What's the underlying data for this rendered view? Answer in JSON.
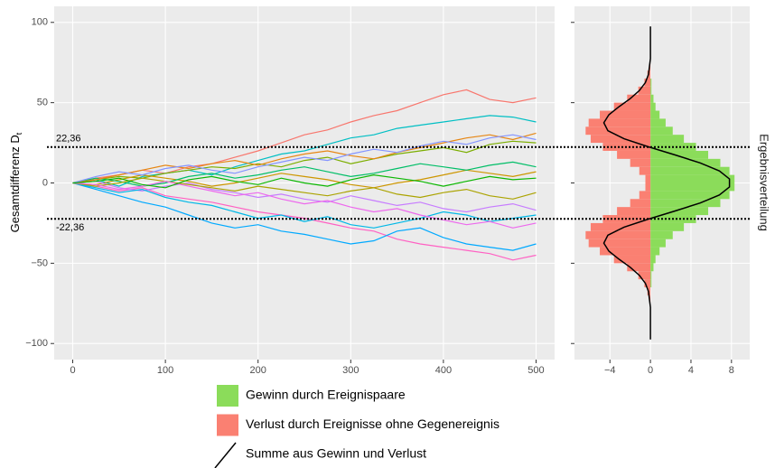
{
  "chart_data": [
    {
      "type": "line",
      "y_label": "Gesamtdifferenz D",
      "y_label_subscript": "t",
      "x": [
        0,
        25,
        50,
        75,
        100,
        125,
        150,
        175,
        200,
        225,
        250,
        275,
        300,
        325,
        350,
        375,
        400,
        425,
        450,
        475,
        500
      ],
      "xlim": [
        -20,
        520
      ],
      "xticks": [
        0,
        100,
        200,
        300,
        400,
        500
      ],
      "ylim": [
        -110,
        110
      ],
      "yticks": [
        {
          "value": -100,
          "label": "−100"
        },
        {
          "value": -50,
          "label": "−50"
        },
        0,
        50,
        100
      ],
      "grid": true,
      "hlines": [
        {
          "value": 22.36,
          "label": "22,36"
        },
        {
          "value": -22.36,
          "label": "-22,36"
        }
      ],
      "series": [
        {
          "color": "#F8766D",
          "values": [
            0,
            3,
            5,
            8,
            6,
            10,
            12,
            16,
            20,
            25,
            30,
            33,
            38,
            42,
            45,
            50,
            55,
            58,
            52,
            50,
            53
          ]
        },
        {
          "color": "#00BFC4",
          "values": [
            0,
            2,
            -2,
            4,
            6,
            8,
            5,
            10,
            14,
            18,
            20,
            24,
            28,
            30,
            34,
            36,
            38,
            40,
            42,
            41,
            38
          ]
        },
        {
          "color": "#FF61C3",
          "values": [
            0,
            -2,
            -5,
            -3,
            -8,
            -10,
            -12,
            -15,
            -18,
            -20,
            -22,
            -25,
            -28,
            -30,
            -35,
            -38,
            -40,
            -42,
            -44,
            -48,
            -45
          ]
        },
        {
          "color": "#00A9FF",
          "values": [
            0,
            -4,
            -8,
            -12,
            -15,
            -20,
            -25,
            -28,
            -26,
            -30,
            -32,
            -35,
            -38,
            -36,
            -30,
            -28,
            -34,
            -38,
            -40,
            -42,
            -38
          ]
        },
        {
          "color": "#7CAE00",
          "values": [
            0,
            2,
            4,
            3,
            6,
            8,
            10,
            9,
            12,
            10,
            14,
            16,
            12,
            15,
            18,
            20,
            22,
            19,
            24,
            26,
            25
          ]
        },
        {
          "color": "#CD9600",
          "values": [
            0,
            -1,
            2,
            5,
            3,
            1,
            -2,
            0,
            3,
            6,
            4,
            2,
            -1,
            -3,
            0,
            2,
            5,
            8,
            6,
            4,
            7
          ]
        },
        {
          "color": "#00BE67",
          "values": [
            0,
            3,
            1,
            -2,
            0,
            4,
            6,
            3,
            5,
            8,
            10,
            7,
            4,
            6,
            9,
            12,
            10,
            8,
            11,
            13,
            10
          ]
        },
        {
          "color": "#C77CFF",
          "values": [
            0,
            1,
            -3,
            -5,
            -2,
            0,
            -4,
            -6,
            -9,
            -7,
            -10,
            -12,
            -8,
            -11,
            -14,
            -12,
            -16,
            -18,
            -15,
            -13,
            -17
          ]
        },
        {
          "color": "#00B8E7",
          "values": [
            0,
            -3,
            -6,
            -4,
            -9,
            -12,
            -14,
            -18,
            -22,
            -20,
            -24,
            -21,
            -26,
            -28,
            -25,
            -22,
            -18,
            -20,
            -24,
            -22,
            -20
          ]
        },
        {
          "color": "#E68613",
          "values": [
            0,
            2,
            5,
            8,
            11,
            9,
            12,
            14,
            11,
            15,
            18,
            20,
            17,
            15,
            19,
            22,
            25,
            28,
            30,
            27,
            31
          ]
        },
        {
          "color": "#ABA300",
          "values": [
            0,
            -2,
            0,
            3,
            1,
            -1,
            -3,
            -5,
            -2,
            -4,
            -6,
            -8,
            -5,
            -3,
            -7,
            -9,
            -6,
            -4,
            -8,
            -10,
            -6
          ]
        },
        {
          "color": "#8494FF",
          "values": [
            0,
            4,
            7,
            5,
            9,
            11,
            8,
            6,
            10,
            13,
            16,
            14,
            18,
            21,
            19,
            23,
            26,
            24,
            28,
            30,
            27
          ]
        },
        {
          "color": "#ED68ED",
          "values": [
            0,
            -1,
            -4,
            -2,
            1,
            -2,
            -5,
            -8,
            -6,
            -10,
            -13,
            -11,
            -15,
            -18,
            -16,
            -20,
            -23,
            -26,
            -24,
            -28,
            -25
          ]
        },
        {
          "color": "#0CB702",
          "values": [
            0,
            1,
            3,
            -1,
            -3,
            2,
            4,
            1,
            -1,
            3,
            0,
            -2,
            2,
            5,
            3,
            1,
            -2,
            1,
            4,
            2,
            3
          ]
        }
      ]
    },
    {
      "type": "histogram",
      "orientation": "horizontal",
      "facet_label": "Ergebnisverteilung",
      "bins": [
        -100,
        -95,
        -90,
        -85,
        -80,
        -75,
        -70,
        -65,
        -60,
        -55,
        -50,
        -45,
        -40,
        -35,
        -30,
        -25,
        -20,
        -15,
        -10,
        -5,
        0,
        5,
        10,
        15,
        20,
        25,
        30,
        35,
        40,
        45,
        50,
        55,
        60,
        65,
        70,
        75,
        80,
        85,
        90,
        95,
        100
      ],
      "xlim": [
        -7.5,
        9.8
      ],
      "xticks": [
        {
          "value": -4,
          "label": "−4"
        },
        0,
        4,
        8
      ],
      "ylim": [
        -110,
        110
      ],
      "yticks": [
        -100,
        -50,
        0,
        50,
        100
      ],
      "grid": true,
      "series": [
        {
          "name": "Gewinn durch Ereignispaare",
          "color": "#8BDC5A",
          "style": "bar",
          "values": [
            0,
            0,
            0,
            0,
            0,
            0,
            0,
            0.1,
            0.1,
            0.3,
            0.5,
            0.9,
            1.5,
            2.2,
            3.3,
            4.5,
            5.7,
            6.9,
            7.8,
            8.3,
            8.3,
            7.8,
            6.9,
            5.7,
            4.5,
            3.3,
            2.2,
            1.5,
            0.9,
            0.5,
            0.3,
            0.1,
            0.1,
            0,
            0,
            0,
            0,
            0,
            0,
            0
          ]
        },
        {
          "name": "Verlust durch Ereignisse ohne Gegenereignis",
          "color": "#FA8072",
          "style": "bar",
          "values": [
            0,
            0,
            0,
            0,
            0,
            -0.1,
            -0.3,
            -0.6,
            -1.2,
            -2.3,
            -3.6,
            -5.0,
            -6.1,
            -6.4,
            -5.9,
            -4.7,
            -3.3,
            -2.0,
            -1.1,
            -0.5,
            -0.5,
            -1.1,
            -2.0,
            -3.3,
            -4.7,
            -5.9,
            -6.4,
            -6.1,
            -5.0,
            -3.6,
            -2.3,
            -1.2,
            -0.6,
            -0.3,
            -0.1,
            0,
            0,
            0,
            0,
            0
          ]
        },
        {
          "name": "Summe aus Gewinn und Verlust",
          "color": "#000000",
          "style": "line",
          "values": [
            0,
            0,
            0,
            0,
            0,
            -0.1,
            -0.2,
            -0.5,
            -1.1,
            -2.0,
            -3.1,
            -4.1,
            -4.6,
            -4.2,
            -2.6,
            -0.2,
            2.4,
            4.9,
            6.8,
            7.8,
            7.8,
            6.8,
            4.9,
            2.4,
            -0.2,
            -2.6,
            -4.2,
            -4.6,
            -4.1,
            -3.1,
            -2.0,
            -1.1,
            -0.5,
            -0.2,
            -0.1,
            0,
            0,
            0,
            0,
            0
          ]
        }
      ]
    }
  ]
}
